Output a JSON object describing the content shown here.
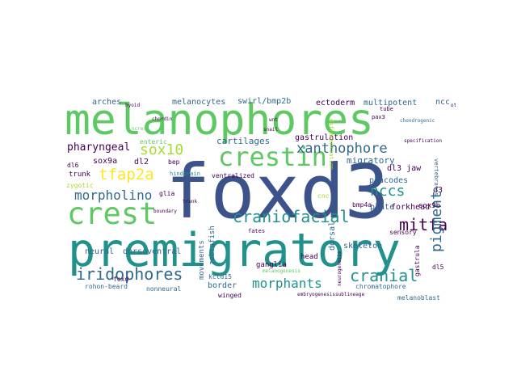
{
  "palette": {
    "dark_purple": "#440154",
    "indigo": "#3b528b",
    "slate": "#31688e",
    "teal": "#21918c",
    "green": "#5ec962",
    "lime": "#aadc32",
    "yellow": "#fde725"
  },
  "words": {
    "foxd3": "foxd3",
    "premigratory": "premigratory",
    "melanophores": "melanophores",
    "crestin": "crestin",
    "crest": "crest",
    "xanthophore": "xanthophore",
    "iridophores": "iridophores",
    "morpholino": "morpholino",
    "mitfa": "mitfa",
    "cranial": "cranial",
    "pigment": "pigment",
    "craniofacial": "craniofacial",
    "sox10": "sox10",
    "tfap2a": "tfap2a",
    "nccs": "nccs",
    "morphants": "morphants",
    "pharyngeal": "pharyngeal",
    "melanocytes": "melanocytes",
    "swirl_bmp2b": "swirl/bmp2b",
    "ectoderm": "ectoderm",
    "multipotent": "multipotent",
    "ncc": "ncc",
    "arches": "arches",
    "cartilages": "cartilages",
    "gastrulation": "gastrulation",
    "migratory": "migratory",
    "sox9a": "sox9a",
    "dl2": "dl2",
    "dl3_jaw": "dl3 jaw",
    "d3": "d3",
    "placodes": "placodes",
    "plate": "plate",
    "forkhead": "forkhead",
    "skeleton": "skeleton",
    "neural": "neural",
    "dorsoventral": "dorsoventral",
    "border": "border",
    "movements": "movements",
    "zebrafish": "zebrafish",
    "ganglia": "ganglia",
    "head": "head",
    "dorsal": "dorsal",
    "sox9b": "sox9b",
    "rohon_beard": "rohon-beard",
    "nonneural": "nonneural",
    "winged": "winged",
    "chromatophore": "chromatophore",
    "melanoblast": "melanoblast",
    "foxd": "foxd",
    "kctd15": "kctd15",
    "enteric": "enteric",
    "bep": "bep",
    "hindbrain": "hindbrain",
    "trunk": "trunk",
    "zygotic": "zygotic",
    "dl6": "dl6",
    "glia": "glia",
    "ventralized": "ventralized",
    "cnc": "cnc",
    "bmp4a": "bmp4a",
    "fates": "fates",
    "sensory": "sensory",
    "gastrula": "gastrula",
    "dl5": "dl5",
    "tube": "tube",
    "pax3": "pax3",
    "differentiation": "differentiation",
    "chondrogenic": "chondrogenic",
    "neurogenesis": "neurogenesis",
    "vertebrates": "vertebrates",
    "melanogenesis": "melanogenesis",
    "boundary": "boundary",
    "embryogenesis": "embryogenesis",
    "chordin": "chordin",
    "specification": "specification",
    "ncrest": "ncrest",
    "snail": "snail",
    "trunk2": "trunk",
    "sublineage": "sublineage",
    "wnt": "wnt",
    "hyoid": "hyoid",
    "otic": "otic"
  }
}
